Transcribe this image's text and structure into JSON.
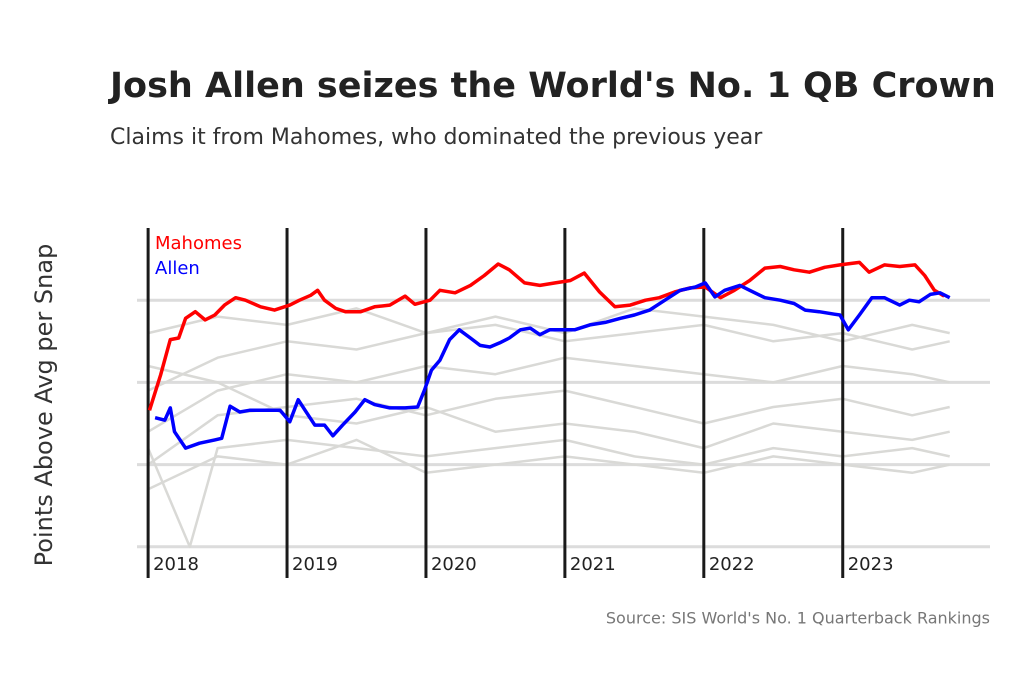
{
  "chart_data": {
    "type": "line",
    "title": "Josh Allen seizes the World's No. 1 QB Crown",
    "subtitle": "Claims it from Mahomes, who dominated the previous year",
    "y_label": "Points Above Avg per Snap",
    "source": "Source: SIS World's No. 1 Quarterback Rankings",
    "xlim": [
      2017.92,
      2024.06
    ],
    "xticks": [
      2018,
      2019,
      2020,
      2021,
      2022,
      2023
    ],
    "ylim": [
      -0.1,
      4.0
    ],
    "yticks": [
      0,
      1,
      2,
      3
    ],
    "grid": true,
    "legend": "top-left",
    "series": [
      {
        "color": "#d9d9d6",
        "x": [
          2018.0,
          2018.5,
          2019.0,
          2019.5,
          2020.0,
          2020.5,
          2021.0,
          2021.5,
          2022.0,
          2022.5,
          2023.0,
          2023.5,
          2023.77
        ],
        "values": [
          1.9,
          2.3,
          2.5,
          2.4,
          2.6,
          2.7,
          2.5,
          2.6,
          2.7,
          2.5,
          2.6,
          2.4,
          2.5
        ]
      },
      {
        "color": "#d9d9d6",
        "x": [
          2018.0,
          2018.5,
          2019.0,
          2019.5,
          2020.0,
          2020.5,
          2021.0,
          2021.5,
          2022.0,
          2022.5,
          2023.0,
          2023.5,
          2023.77
        ],
        "values": [
          1.4,
          1.9,
          2.1,
          2.0,
          2.2,
          2.1,
          2.3,
          2.2,
          2.1,
          2.0,
          2.2,
          2.1,
          2.0
        ]
      },
      {
        "color": "#d9d9d6",
        "x": [
          2018.0,
          2018.5,
          2019.0,
          2019.5,
          2020.0,
          2020.5,
          2021.0,
          2021.5,
          2022.0,
          2022.5,
          2023.0,
          2023.5,
          2023.77
        ],
        "values": [
          1.0,
          1.6,
          1.7,
          1.8,
          1.6,
          1.8,
          1.9,
          1.7,
          1.5,
          1.7,
          1.8,
          1.6,
          1.7
        ]
      },
      {
        "color": "#d9d9d6",
        "x": [
          2018.0,
          2018.5,
          2019.0,
          2019.5,
          2020.0,
          2020.5,
          2021.0,
          2021.5,
          2022.0,
          2022.5,
          2023.0,
          2023.5,
          2023.77
        ],
        "values": [
          2.2,
          2.0,
          1.6,
          1.5,
          1.7,
          1.4,
          1.5,
          1.4,
          1.2,
          1.5,
          1.4,
          1.3,
          1.4
        ]
      },
      {
        "color": "#d9d9d6",
        "x": [
          2018.0,
          2018.3,
          2018.5,
          2019.0,
          2019.5,
          2020.0,
          2020.5,
          2021.0,
          2021.5,
          2022.0,
          2022.5,
          2023.0,
          2023.5,
          2023.77
        ],
        "values": [
          1.2,
          0.0,
          1.2,
          1.3,
          1.2,
          1.1,
          1.2,
          1.3,
          1.1,
          1.0,
          1.2,
          1.1,
          1.2,
          1.1
        ]
      },
      {
        "color": "#d9d9d6",
        "x": [
          2018.0,
          2018.5,
          2019.0,
          2019.5,
          2020.0,
          2020.5,
          2021.0,
          2021.5,
          2022.0,
          2022.5,
          2023.0,
          2023.5,
          2023.77
        ],
        "values": [
          2.6,
          2.8,
          2.7,
          2.9,
          2.6,
          2.8,
          2.6,
          2.9,
          2.8,
          2.7,
          2.5,
          2.7,
          2.6
        ]
      },
      {
        "color": "#d9d9d6",
        "x": [
          2018.0,
          2018.5,
          2019.0,
          2019.5,
          2020.0,
          2020.5,
          2021.0,
          2021.5,
          2022.0,
          2022.5,
          2023.0,
          2023.5,
          2023.77
        ],
        "values": [
          0.7,
          1.1,
          1.0,
          1.3,
          0.9,
          1.0,
          1.1,
          1.0,
          0.9,
          1.1,
          1.0,
          0.9,
          1.0
        ]
      },
      {
        "name": "Mahomes",
        "color": "#ff0000",
        "x": [
          2018.01,
          2018.09,
          2018.16,
          2018.22,
          2018.27,
          2018.34,
          2018.41,
          2018.48,
          2018.55,
          2018.63,
          2018.7,
          2018.81,
          2018.91,
          2019.02,
          2019.09,
          2019.17,
          2019.22,
          2019.27,
          2019.35,
          2019.42,
          2019.53,
          2019.63,
          2019.74,
          2019.85,
          2019.92,
          2020.03,
          2020.1,
          2020.21,
          2020.32,
          2020.42,
          2020.52,
          2020.6,
          2020.71,
          2020.82,
          2020.93,
          2021.04,
          2021.14,
          2021.25,
          2021.36,
          2021.47,
          2021.58,
          2021.68,
          2021.79,
          2021.9,
          2022.01,
          2022.12,
          2022.22,
          2022.33,
          2022.44,
          2022.55,
          2022.65,
          2022.76,
          2022.87,
          2022.98,
          2023.12,
          2023.19,
          2023.3,
          2023.41,
          2023.52,
          2023.59,
          2023.66,
          2023.73
        ],
        "values": [
          1.66,
          2.09,
          2.52,
          2.54,
          2.78,
          2.86,
          2.76,
          2.82,
          2.94,
          3.03,
          3.0,
          2.92,
          2.88,
          2.94,
          3.0,
          3.06,
          3.12,
          3.0,
          2.9,
          2.86,
          2.86,
          2.92,
          2.94,
          3.05,
          2.95,
          3.0,
          3.12,
          3.09,
          3.18,
          3.3,
          3.44,
          3.37,
          3.21,
          3.18,
          3.21,
          3.24,
          3.33,
          3.1,
          2.92,
          2.94,
          3.0,
          3.03,
          3.1,
          3.15,
          3.16,
          3.03,
          3.12,
          3.24,
          3.39,
          3.41,
          3.37,
          3.34,
          3.4,
          3.43,
          3.46,
          3.34,
          3.43,
          3.41,
          3.43,
          3.3,
          3.12,
          3.05
        ]
      },
      {
        "name": "Allen",
        "color": "#0000ff",
        "x": [
          2018.05,
          2018.12,
          2018.16,
          2018.19,
          2018.27,
          2018.37,
          2018.48,
          2018.53,
          2018.59,
          2018.66,
          2018.73,
          2018.84,
          2018.95,
          2019.02,
          2019.08,
          2019.13,
          2019.2,
          2019.27,
          2019.33,
          2019.4,
          2019.49,
          2019.56,
          2019.63,
          2019.74,
          2019.85,
          2019.94,
          2019.99,
          2020.04,
          2020.1,
          2020.17,
          2020.24,
          2020.32,
          2020.39,
          2020.46,
          2020.53,
          2020.6,
          2020.68,
          2020.75,
          2020.82,
          2020.89,
          2020.96,
          2021.07,
          2021.18,
          2021.29,
          2021.4,
          2021.5,
          2021.61,
          2021.72,
          2021.83,
          2021.94,
          2022.01,
          2022.08,
          2022.15,
          2022.26,
          2022.33,
          2022.44,
          2022.55,
          2022.65,
          2022.73,
          2022.83,
          2022.94,
          2022.98,
          2023.04,
          2023.12,
          2023.21,
          2023.3,
          2023.41,
          2023.48,
          2023.55,
          2023.63,
          2023.7,
          2023.77
        ],
        "values": [
          1.57,
          1.54,
          1.69,
          1.4,
          1.2,
          1.26,
          1.3,
          1.32,
          1.71,
          1.64,
          1.66,
          1.66,
          1.66,
          1.52,
          1.79,
          1.66,
          1.48,
          1.48,
          1.35,
          1.48,
          1.64,
          1.79,
          1.73,
          1.69,
          1.69,
          1.7,
          1.91,
          2.15,
          2.27,
          2.52,
          2.64,
          2.54,
          2.45,
          2.43,
          2.48,
          2.54,
          2.64,
          2.66,
          2.58,
          2.64,
          2.64,
          2.64,
          2.7,
          2.73,
          2.78,
          2.82,
          2.88,
          3.0,
          3.12,
          3.16,
          3.21,
          3.04,
          3.12,
          3.18,
          3.12,
          3.03,
          3.0,
          2.96,
          2.88,
          2.86,
          2.83,
          2.82,
          2.64,
          2.82,
          3.03,
          3.03,
          2.94,
          3.0,
          2.98,
          3.07,
          3.09,
          3.03
        ]
      }
    ]
  }
}
